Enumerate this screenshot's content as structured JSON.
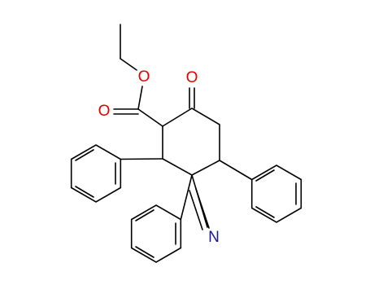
{
  "atoms": [
    "O",
    "O",
    "O",
    "N"
  ]
}
